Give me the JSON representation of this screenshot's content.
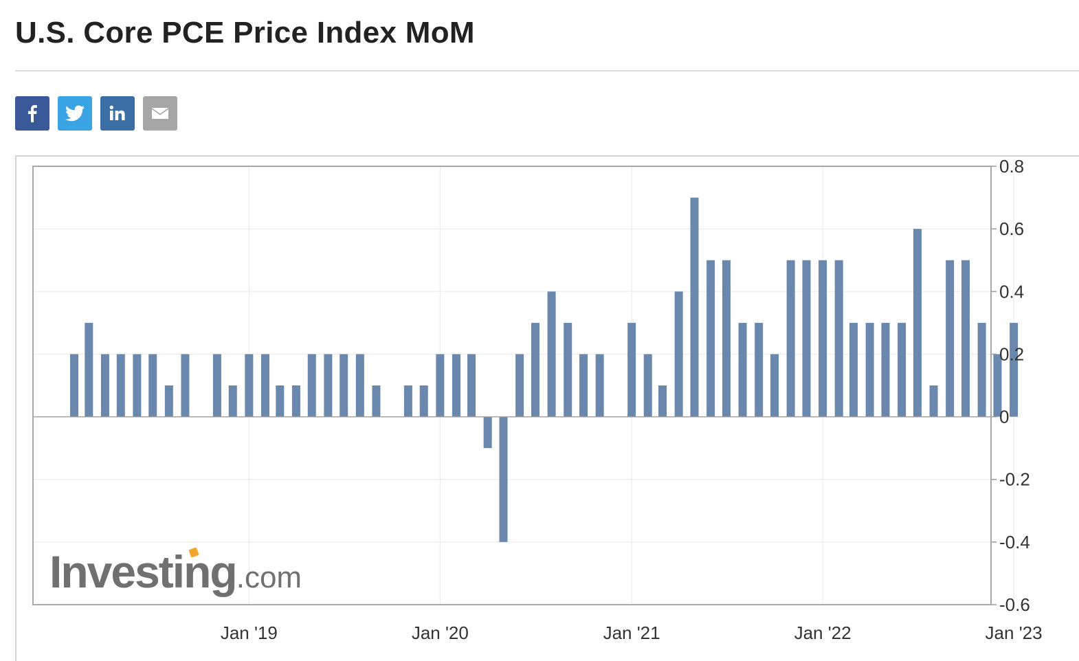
{
  "header": {
    "title": "U.S. Core PCE Price Index MoM"
  },
  "share": [
    {
      "name": "facebook-button",
      "icon": "facebook-icon",
      "color": "#3b5998",
      "glyph": "f"
    },
    {
      "name": "twitter-button",
      "icon": "twitter-icon",
      "color": "#3aa3e3",
      "glyph": "bird"
    },
    {
      "name": "linkedin-button",
      "icon": "linkedin-icon",
      "color": "#3a6ea5",
      "glyph": "in"
    },
    {
      "name": "email-button",
      "icon": "email-icon",
      "color": "#a6a6a6",
      "glyph": "mail"
    }
  ],
  "logo": {
    "main": "Investing",
    "suffix": ".com",
    "dot_color": "#f4a62a"
  },
  "chart_data": {
    "type": "bar",
    "bar_color": "#6a87ad",
    "grid": true,
    "y_axis_side": "right",
    "ylim": [
      -0.6,
      0.8
    ],
    "yticks": [
      0.8,
      0.6,
      0.4,
      0.2,
      0,
      -0.2,
      -0.4,
      -0.6
    ],
    "ytick_labels": [
      "0.8",
      "0.6",
      "0.4",
      "0.2",
      "0",
      "-0.2",
      "-0.4",
      "-0.6"
    ],
    "x_start": "2018-02",
    "xticks": [
      {
        "date": "2019-01",
        "label": "Jan '19"
      },
      {
        "date": "2020-01",
        "label": "Jan '20"
      },
      {
        "date": "2021-01",
        "label": "Jan '21"
      },
      {
        "date": "2022-01",
        "label": "Jan '22"
      },
      {
        "date": "2023-01",
        "label": "Jan '23"
      }
    ],
    "series": [
      {
        "x": [
          "2018-02",
          "2018-03",
          "2018-04",
          "2018-05",
          "2018-06",
          "2018-07",
          "2018-08",
          "2018-09",
          "2018-10",
          "2018-11",
          "2018-12",
          "2019-01",
          "2019-02",
          "2019-03",
          "2019-04",
          "2019-05",
          "2019-06",
          "2019-07",
          "2019-08",
          "2019-09",
          "2019-10",
          "2019-11",
          "2019-12",
          "2020-01",
          "2020-02",
          "2020-03",
          "2020-04",
          "2020-05",
          "2020-06",
          "2020-07",
          "2020-08",
          "2020-09",
          "2020-10",
          "2020-11",
          "2020-12",
          "2021-01",
          "2021-02",
          "2021-03",
          "2021-04",
          "2021-05",
          "2021-06",
          "2021-07",
          "2021-08",
          "2021-09",
          "2021-10",
          "2021-11",
          "2021-12",
          "2022-01",
          "2022-02",
          "2022-03",
          "2022-04",
          "2022-05",
          "2022-06",
          "2022-07",
          "2022-08",
          "2022-09",
          "2022-10",
          "2022-11",
          "2022-12",
          "2023-01"
        ],
        "values": [
          0.2,
          0.3,
          0.2,
          0.2,
          0.2,
          0.2,
          0.1,
          0.2,
          0,
          0.2,
          0.1,
          0.2,
          0.2,
          0.1,
          0.1,
          0.2,
          0.2,
          0.2,
          0.2,
          0.1,
          0,
          0.1,
          0.1,
          0.2,
          0.2,
          0.2,
          -0.1,
          -0.4,
          0.2,
          0.3,
          0.4,
          0.3,
          0.2,
          0.2,
          0,
          0.3,
          0.2,
          0.1,
          0.4,
          0.7,
          0.5,
          0.5,
          0.3,
          0.3,
          0.2,
          0.5,
          0.5,
          0.5,
          0.5,
          0.3,
          0.3,
          0.3,
          0.3,
          0.6,
          0.1,
          0.5,
          0.5,
          0.3,
          0.2,
          0.3
        ]
      }
    ]
  }
}
